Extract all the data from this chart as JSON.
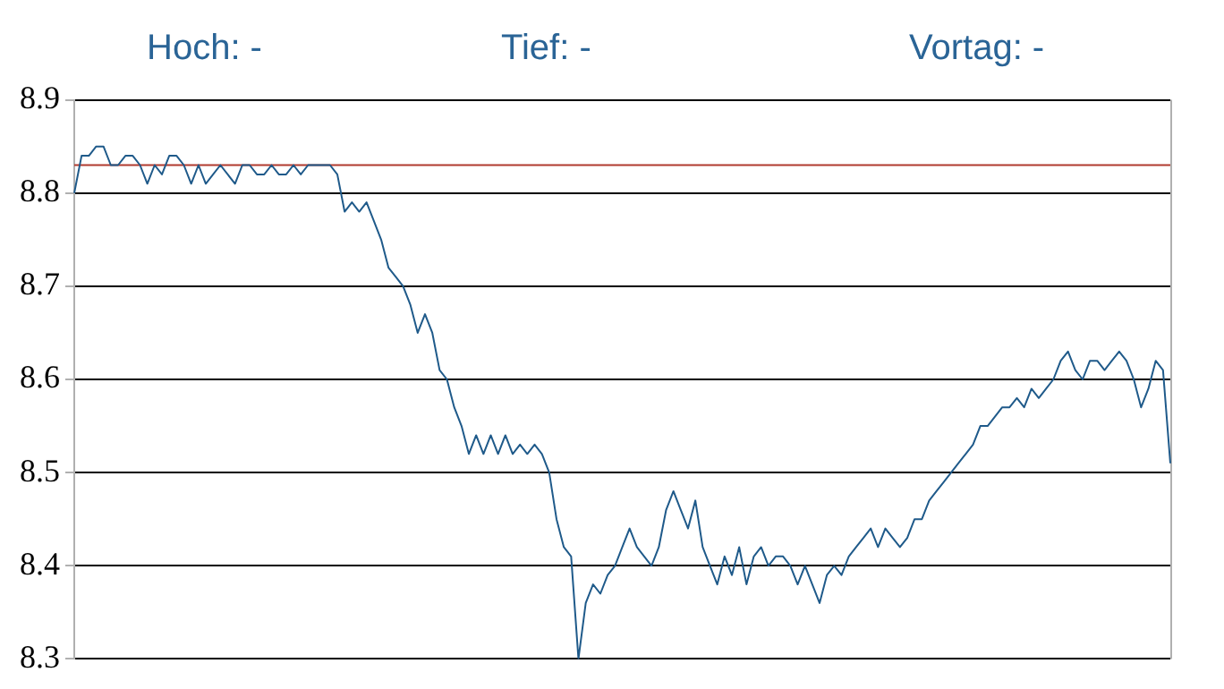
{
  "chart_data": {
    "type": "line",
    "annotations": [
      "Hoch: -",
      "Tief: -",
      "Vortag: -"
    ],
    "categories": [
      null,
      null,
      null,
      null,
      null,
      null,
      null,
      null,
      null,
      null,
      null,
      null,
      null,
      null,
      null,
      null,
      null,
      null,
      null,
      null,
      null,
      null,
      null,
      null,
      null,
      null,
      null,
      null,
      null,
      null,
      null,
      null,
      null,
      null,
      null,
      null,
      null,
      null,
      null,
      null,
      null,
      null,
      null,
      null,
      null,
      null,
      null,
      null,
      null,
      null,
      null,
      null,
      null,
      null,
      null,
      null,
      null,
      null,
      null,
      null,
      null,
      null,
      null,
      null,
      null,
      null,
      null,
      null,
      null,
      null,
      null,
      null,
      null,
      null,
      null,
      null,
      null,
      null,
      null,
      null,
      null,
      null,
      null,
      null,
      null,
      null,
      null,
      null,
      null,
      null,
      null,
      null,
      null,
      null,
      null,
      null,
      null,
      null,
      null,
      null,
      null,
      null,
      null,
      null,
      null,
      null,
      null,
      null,
      null,
      null,
      null,
      null,
      null,
      null,
      null,
      null,
      null,
      null,
      null,
      null,
      null,
      null,
      null,
      null,
      null,
      null,
      null,
      null,
      null,
      null,
      null,
      null,
      null,
      null,
      null,
      null,
      null,
      null,
      null,
      null,
      null,
      null,
      null,
      null,
      null,
      null,
      null,
      null,
      null,
      null,
      null
    ],
    "series": [
      {
        "color": "#1f5a8a",
        "values": [
          8.8,
          8.84,
          8.84,
          8.85,
          8.85,
          8.83,
          8.83,
          8.84,
          8.84,
          8.83,
          8.81,
          8.83,
          8.82,
          8.84,
          8.84,
          8.83,
          8.81,
          8.83,
          8.81,
          8.82,
          8.83,
          8.82,
          8.81,
          8.83,
          8.83,
          8.82,
          8.82,
          8.83,
          8.82,
          8.82,
          8.83,
          8.82,
          8.83,
          8.83,
          8.83,
          8.83,
          8.82,
          8.78,
          8.79,
          8.78,
          8.79,
          8.77,
          8.75,
          8.72,
          8.71,
          8.7,
          8.68,
          8.65,
          8.67,
          8.65,
          8.61,
          8.6,
          8.57,
          8.55,
          8.52,
          8.54,
          8.52,
          8.54,
          8.52,
          8.54,
          8.52,
          8.53,
          8.52,
          8.53,
          8.52,
          8.5,
          8.45,
          8.42,
          8.41,
          8.3,
          8.36,
          8.38,
          8.37,
          8.39,
          8.4,
          8.42,
          8.44,
          8.42,
          8.41,
          8.4,
          8.42,
          8.46,
          8.48,
          8.46,
          8.44,
          8.47,
          8.42,
          8.4,
          8.38,
          8.41,
          8.39,
          8.42,
          8.38,
          8.41,
          8.42,
          8.4,
          8.41,
          8.41,
          8.4,
          8.38,
          8.4,
          8.38,
          8.36,
          8.39,
          8.4,
          8.39,
          8.41,
          8.42,
          8.43,
          8.44,
          8.42,
          8.44,
          8.43,
          8.42,
          8.43,
          8.45,
          8.45,
          8.47,
          8.48,
          8.49,
          8.5,
          8.51,
          8.52,
          8.53,
          8.55,
          8.55,
          8.56,
          8.57,
          8.57,
          8.58,
          8.57,
          8.59,
          8.58,
          8.59,
          8.6,
          8.62,
          8.63,
          8.61,
          8.6,
          8.62,
          8.62,
          8.61,
          8.62,
          8.63,
          8.62,
          8.6,
          8.57,
          8.59,
          8.62,
          8.61,
          8.51
        ]
      }
    ],
    "ylim": [
      8.3,
      8.9
    ],
    "yticks": [
      8.3,
      8.4,
      8.5,
      8.6,
      8.7,
      8.8,
      8.9
    ],
    "ref_lines": [
      {
        "axis": "y",
        "value": 8.83,
        "color": "#b03a2e"
      }
    ],
    "grid": "y",
    "legend": false,
    "tick_labels": "y",
    "marker": "none",
    "line_style": "solid"
  }
}
